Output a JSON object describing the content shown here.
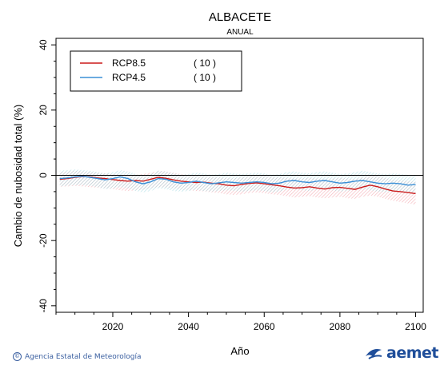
{
  "chart_data": {
    "type": "line",
    "title": "ALBACETE",
    "subtitle": "ANUAL",
    "xlabel": "Año",
    "ylabel": "Cambio de nubosidad total (%)",
    "xlim": [
      2005,
      2102
    ],
    "ylim": [
      -42,
      42
    ],
    "x_ticks": [
      2020,
      2040,
      2060,
      2080,
      2100
    ],
    "y_ticks": [
      -40,
      -20,
      0,
      20,
      40
    ],
    "zero_line": true,
    "legend_position": "top-left",
    "x": [
      2006,
      2008,
      2010,
      2012,
      2014,
      2016,
      2018,
      2020,
      2022,
      2024,
      2026,
      2028,
      2030,
      2032,
      2034,
      2036,
      2038,
      2040,
      2042,
      2044,
      2046,
      2048,
      2050,
      2052,
      2054,
      2056,
      2058,
      2060,
      2062,
      2064,
      2066,
      2068,
      2070,
      2072,
      2074,
      2076,
      2078,
      2080,
      2082,
      2084,
      2086,
      2088,
      2090,
      2092,
      2094,
      2096,
      2098,
      2100
    ],
    "series": [
      {
        "name": "RCP8.5",
        "count": "( 10 )",
        "color": "#cc1a1a",
        "band_color": "#f2a0a8",
        "values": [
          -1.2,
          -1.0,
          -0.6,
          -0.4,
          -0.5,
          -0.8,
          -1.0,
          -1.3,
          -1.6,
          -1.8,
          -1.6,
          -1.8,
          -1.2,
          -0.6,
          -0.9,
          -1.4,
          -1.8,
          -2.0,
          -2.2,
          -2.1,
          -2.4,
          -2.6,
          -3.0,
          -3.2,
          -2.8,
          -2.5,
          -2.3,
          -2.6,
          -2.9,
          -3.2,
          -3.6,
          -3.9,
          -3.8,
          -3.5,
          -3.9,
          -4.2,
          -3.8,
          -3.7,
          -4.0,
          -4.3,
          -3.6,
          -3.0,
          -3.5,
          -4.2,
          -4.8,
          -5.0,
          -5.3,
          -5.6
        ],
        "lower": [
          -3.5,
          -3.4,
          -3.2,
          -3.4,
          -3.6,
          -3.8,
          -4.0,
          -4.2,
          -4.6,
          -4.8,
          -4.6,
          -4.4,
          -4.0,
          -3.6,
          -3.8,
          -4.0,
          -4.4,
          -4.6,
          -4.8,
          -4.9,
          -5.2,
          -5.4,
          -5.8,
          -6.0,
          -5.8,
          -5.4,
          -5.2,
          -5.5,
          -5.8,
          -6.0,
          -6.4,
          -6.8,
          -6.6,
          -6.4,
          -6.8,
          -7.0,
          -6.8,
          -6.6,
          -7.0,
          -7.2,
          -6.6,
          -6.2,
          -6.6,
          -7.2,
          -7.8,
          -8.2,
          -8.6,
          -9.0
        ],
        "upper": [
          1.0,
          1.2,
          1.4,
          1.2,
          1.0,
          0.8,
          0.6,
          0.4,
          0.2,
          0.0,
          0.2,
          0.4,
          0.8,
          1.4,
          1.2,
          0.8,
          0.4,
          0.2,
          -0.2,
          -0.2,
          -0.4,
          -0.6,
          -0.8,
          -1.0,
          -0.6,
          -0.2,
          0.0,
          -0.2,
          -0.4,
          -0.6,
          -0.8,
          -1.0,
          -1.0,
          -0.8,
          -1.0,
          -1.2,
          -1.0,
          -0.8,
          -1.0,
          -1.2,
          -0.6,
          0.0,
          -0.2,
          -0.8,
          -1.4,
          -1.6,
          -1.8,
          -2.0
        ]
      },
      {
        "name": "RCP4.5",
        "count": "( 10 )",
        "color": "#3a8fd6",
        "band_color": "#9fd8e0",
        "values": [
          -1.0,
          -0.8,
          -0.5,
          -0.3,
          -0.6,
          -1.0,
          -1.4,
          -1.0,
          -0.5,
          -1.0,
          -2.0,
          -2.6,
          -2.0,
          -1.0,
          -1.2,
          -2.0,
          -2.4,
          -2.2,
          -1.8,
          -2.2,
          -2.6,
          -2.3,
          -2.0,
          -2.2,
          -2.4,
          -2.2,
          -2.0,
          -2.2,
          -2.6,
          -2.4,
          -1.8,
          -1.6,
          -2.0,
          -2.2,
          -1.8,
          -1.6,
          -2.0,
          -2.4,
          -2.2,
          -1.8,
          -1.6,
          -2.0,
          -2.4,
          -2.6,
          -2.4,
          -2.6,
          -3.0,
          -2.8
        ],
        "lower": [
          -3.4,
          -3.2,
          -3.0,
          -3.0,
          -3.2,
          -3.6,
          -4.2,
          -4.0,
          -3.6,
          -4.0,
          -4.8,
          -5.2,
          -4.8,
          -4.0,
          -4.2,
          -4.8,
          -5.0,
          -4.8,
          -4.4,
          -4.8,
          -5.0,
          -4.8,
          -4.6,
          -4.8,
          -5.0,
          -4.8,
          -4.6,
          -4.8,
          -5.2,
          -5.0,
          -4.4,
          -4.2,
          -4.6,
          -4.8,
          -4.4,
          -4.2,
          -4.6,
          -5.0,
          -4.8,
          -4.4,
          -4.2,
          -4.6,
          -5.0,
          -5.2,
          -5.0,
          -5.2,
          -5.6,
          -5.4
        ],
        "upper": [
          1.4,
          1.6,
          1.8,
          1.6,
          1.4,
          1.0,
          0.6,
          1.0,
          1.6,
          1.2,
          0.4,
          -0.2,
          0.4,
          1.4,
          1.2,
          0.6,
          0.2,
          0.4,
          0.8,
          0.6,
          0.2,
          0.4,
          0.8,
          0.6,
          0.4,
          0.6,
          0.8,
          0.6,
          0.2,
          0.4,
          1.0,
          1.2,
          0.8,
          0.6,
          1.0,
          1.2,
          0.8,
          0.4,
          0.6,
          1.0,
          1.4,
          1.0,
          0.6,
          0.4,
          0.6,
          0.4,
          0.2,
          0.0
        ]
      }
    ]
  },
  "footer": {
    "credit": "Agencia Estatal de Meteorología",
    "credit_icon": "©",
    "logo_text": "aemet"
  }
}
